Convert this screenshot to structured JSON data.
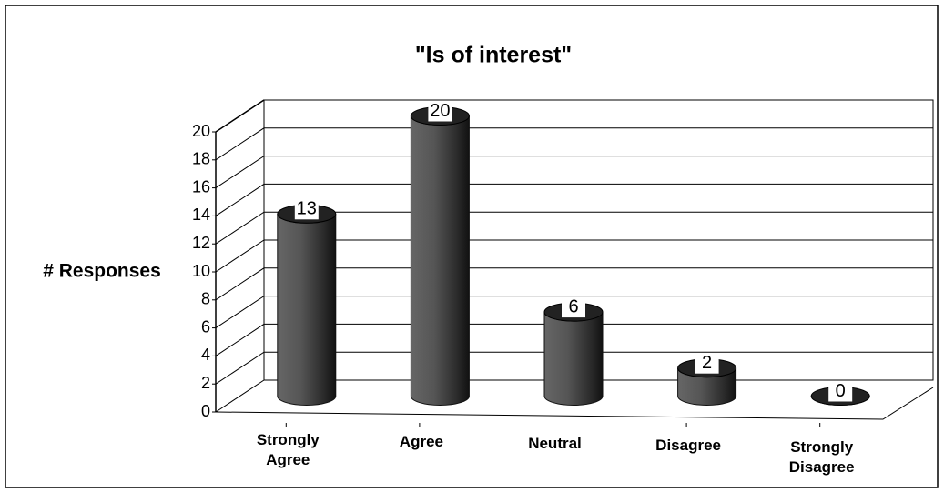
{
  "chart_data": {
    "type": "bar",
    "title": "\"Is of interest\"",
    "y_label": "# Responses",
    "categories": [
      "Strongly Agree",
      "Agree",
      "Neutral",
      "Disagree",
      "Strongly Disagree"
    ],
    "values": [
      13,
      20,
      6,
      2,
      0
    ],
    "color": "#444444",
    "ylim": [
      0,
      20
    ],
    "yticks": [
      0,
      2,
      4,
      6,
      8,
      10,
      12,
      14,
      16,
      18,
      20
    ],
    "grid": true
  }
}
